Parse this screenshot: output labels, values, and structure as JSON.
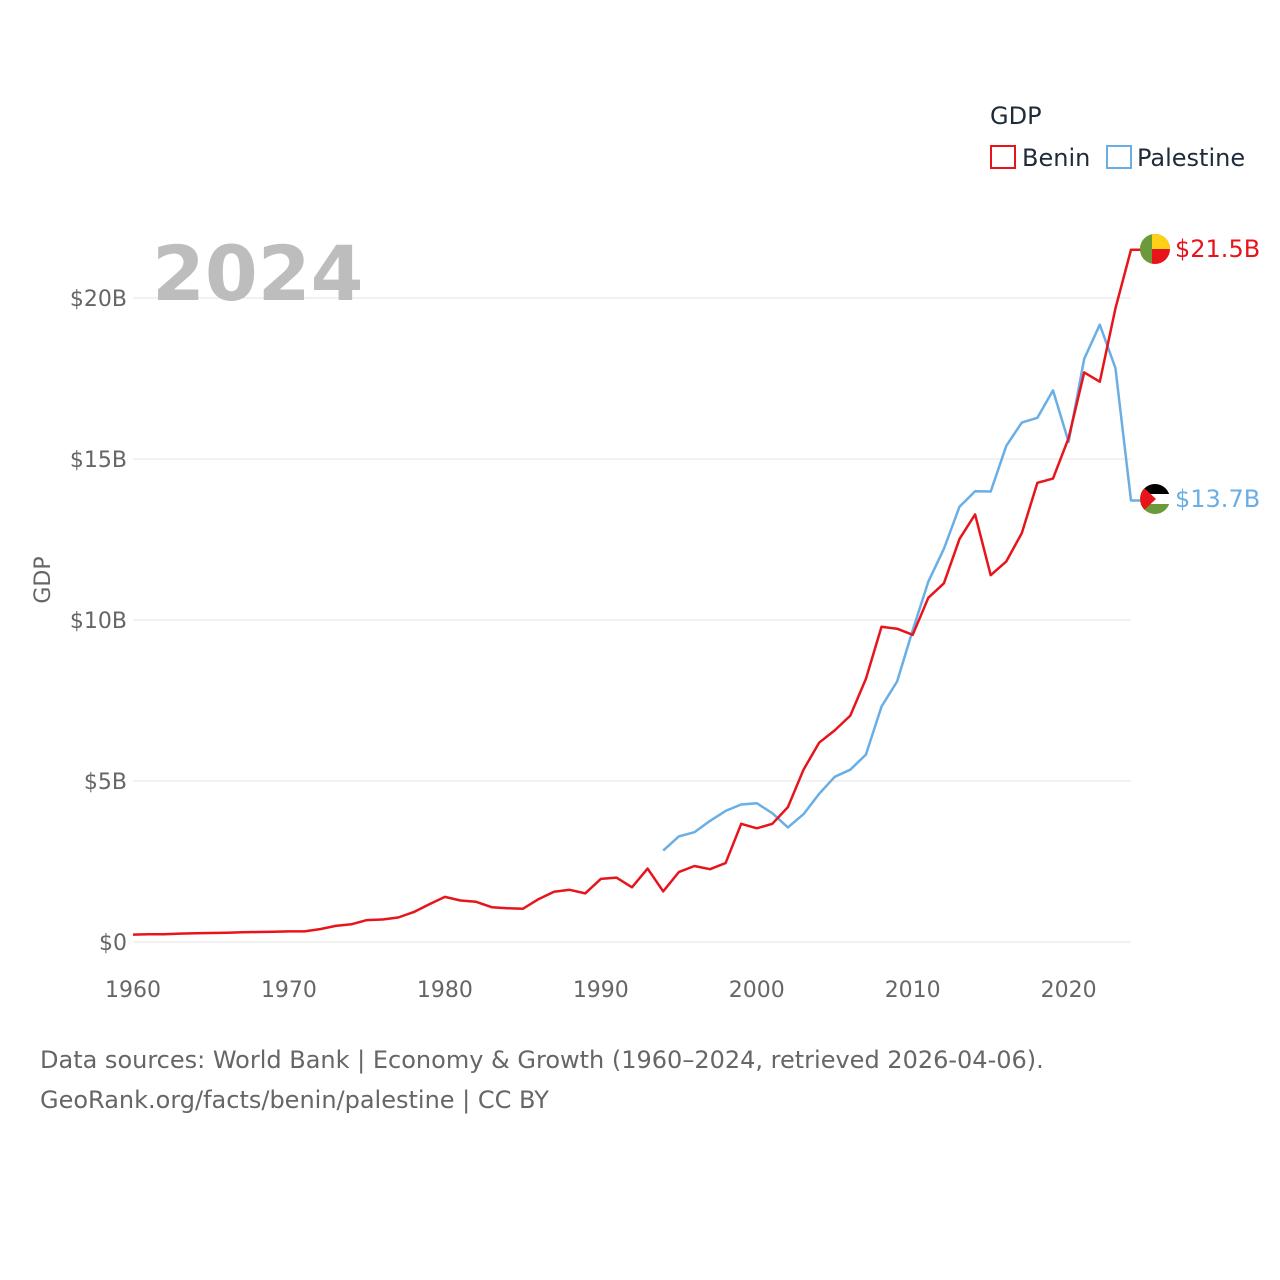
{
  "chart_data": {
    "type": "line",
    "title": "",
    "year_label": "2024",
    "xlabel": "",
    "ylabel": "GDP",
    "xlim": [
      1960,
      2024
    ],
    "ylim": [
      0,
      22
    ],
    "grid": true,
    "x_ticks": [
      1960,
      1970,
      1980,
      1990,
      2000,
      2010,
      2020
    ],
    "x_tick_labels": [
      "1960",
      "1970",
      "1980",
      "1990",
      "2000",
      "2010",
      "2020"
    ],
    "y_ticks": [
      0,
      5,
      10,
      15,
      20
    ],
    "y_tick_labels": [
      "$0",
      "$5B",
      "$10B",
      "$15B",
      "$20B"
    ],
    "legend": {
      "title": "GDP",
      "position": "top-right",
      "entries": [
        "Benin",
        "Palestine"
      ]
    },
    "series": [
      {
        "name": "Benin",
        "color": "#e8141b",
        "end_label": "$21.5B",
        "flag_icon": "benin-flag-icon",
        "x": [
          1960,
          1961,
          1962,
          1963,
          1964,
          1965,
          1966,
          1967,
          1968,
          1969,
          1970,
          1971,
          1972,
          1973,
          1974,
          1975,
          1976,
          1977,
          1978,
          1979,
          1980,
          1981,
          1982,
          1983,
          1984,
          1985,
          1986,
          1987,
          1988,
          1989,
          1990,
          1991,
          1992,
          1993,
          1994,
          1995,
          1996,
          1997,
          1998,
          1999,
          2000,
          2001,
          2002,
          2003,
          2004,
          2005,
          2006,
          2007,
          2008,
          2009,
          2010,
          2011,
          2012,
          2013,
          2014,
          2015,
          2016,
          2017,
          2018,
          2019,
          2020,
          2021,
          2022,
          2023,
          2024
        ],
        "values": [
          0.23,
          0.24,
          0.24,
          0.26,
          0.27,
          0.28,
          0.29,
          0.3,
          0.31,
          0.32,
          0.33,
          0.33,
          0.4,
          0.5,
          0.55,
          0.68,
          0.7,
          0.76,
          0.93,
          1.17,
          1.4,
          1.29,
          1.25,
          1.08,
          1.05,
          1.03,
          1.33,
          1.56,
          1.62,
          1.51,
          1.96,
          2.0,
          1.7,
          2.28,
          1.57,
          2.17,
          2.36,
          2.26,
          2.45,
          3.67,
          3.53,
          3.67,
          4.19,
          5.35,
          6.19,
          6.57,
          7.03,
          8.17,
          9.79,
          9.73,
          9.54,
          10.69,
          11.14,
          12.52,
          13.28,
          11.39,
          11.82,
          12.7,
          14.26,
          14.39,
          15.65,
          17.69,
          17.4,
          19.67,
          21.5
        ]
      },
      {
        "name": "Palestine",
        "color": "#6aaee6",
        "end_label": "$13.7B",
        "flag_icon": "palestine-flag-icon",
        "x": [
          1994,
          1995,
          1996,
          1997,
          1998,
          1999,
          2000,
          2001,
          2002,
          2003,
          2004,
          2005,
          2006,
          2007,
          2008,
          2009,
          2010,
          2011,
          2012,
          2013,
          2014,
          2015,
          2016,
          2017,
          2018,
          2019,
          2020,
          2021,
          2022,
          2023,
          2024
        ],
        "values": [
          2.84,
          3.28,
          3.41,
          3.76,
          4.07,
          4.27,
          4.31,
          4.0,
          3.56,
          3.97,
          4.6,
          5.13,
          5.35,
          5.82,
          7.31,
          8.09,
          9.68,
          11.19,
          12.21,
          13.52,
          14.0,
          13.99,
          15.41,
          16.13,
          16.28,
          17.13,
          15.53,
          18.11,
          19.17,
          17.83,
          13.71
        ]
      }
    ]
  },
  "footer": {
    "line1": "Data sources: World Bank | Economy & Growth (1960–2024, retrieved 2026-04-06).",
    "line2": "GeoRank.org/facts/benin/palestine | CC BY"
  }
}
